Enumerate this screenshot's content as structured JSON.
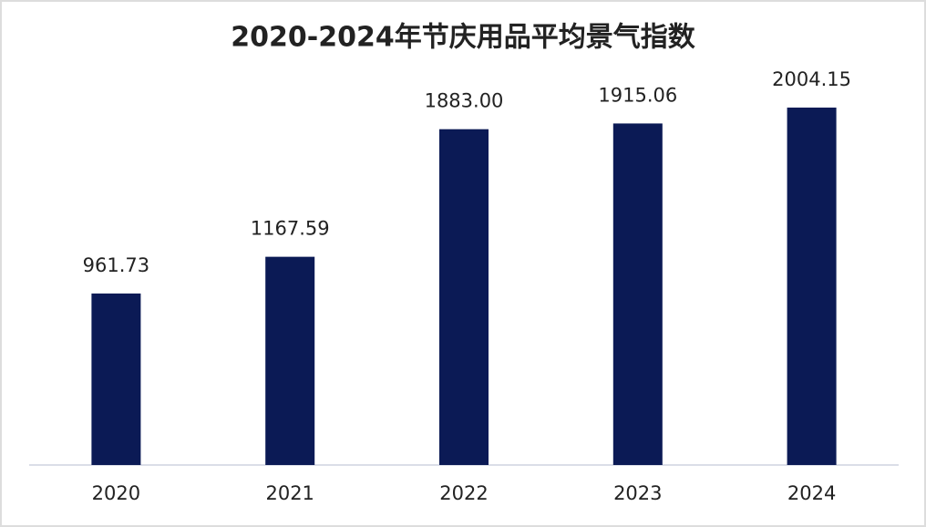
{
  "chart_data": {
    "type": "bar",
    "title": "2020-2024年节庆用品平均景气指数",
    "categories": [
      "2020",
      "2021",
      "2022",
      "2023",
      "2024"
    ],
    "values": [
      961.73,
      1167.59,
      1883.0,
      1915.06,
      2004.15
    ],
    "value_labels": [
      "961.73",
      "1167.59",
      "1883.00",
      "1915.06",
      "2004.15"
    ],
    "color": "#0b1a55"
  }
}
